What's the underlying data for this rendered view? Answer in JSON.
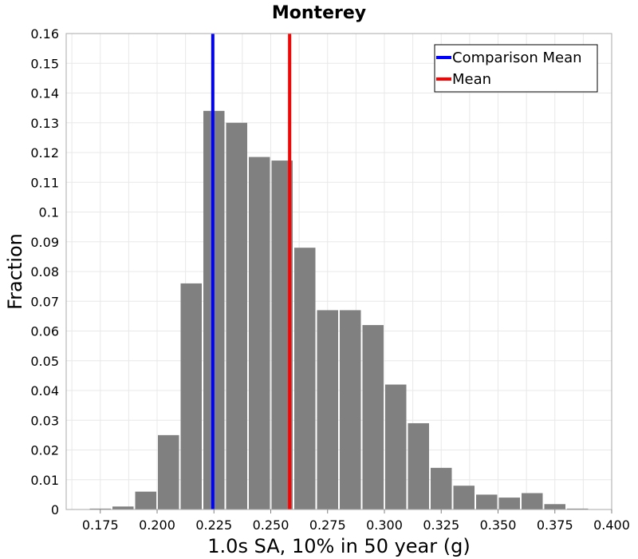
{
  "chart_data": {
    "type": "bar",
    "title": "Monterey",
    "xlabel": "1.0s SA, 10% in 50 year (g)",
    "ylabel": "Fraction",
    "xlim": [
      0.16,
      0.4
    ],
    "ylim": [
      0,
      0.16
    ],
    "bin_width": 0.01,
    "x_ticks": [
      "0.175",
      "0.200",
      "0.225",
      "0.250",
      "0.275",
      "0.300",
      "0.325",
      "0.350",
      "0.375",
      "0.400"
    ],
    "y_ticks": [
      "0",
      "0.01",
      "0.02",
      "0.03",
      "0.04",
      "0.05",
      "0.06",
      "0.07",
      "0.08",
      "0.09",
      "0.1",
      "0.11",
      "0.12",
      "0.13",
      "0.14",
      "0.15",
      "0.16"
    ],
    "bars": [
      {
        "x": 0.175,
        "value": 0.0003
      },
      {
        "x": 0.185,
        "value": 0.001
      },
      {
        "x": 0.195,
        "value": 0.006
      },
      {
        "x": 0.205,
        "value": 0.025
      },
      {
        "x": 0.215,
        "value": 0.076
      },
      {
        "x": 0.225,
        "value": 0.134
      },
      {
        "x": 0.235,
        "value": 0.13
      },
      {
        "x": 0.245,
        "value": 0.1185
      },
      {
        "x": 0.255,
        "value": 0.1173
      },
      {
        "x": 0.265,
        "value": 0.088
      },
      {
        "x": 0.275,
        "value": 0.067
      },
      {
        "x": 0.285,
        "value": 0.067
      },
      {
        "x": 0.295,
        "value": 0.062
      },
      {
        "x": 0.305,
        "value": 0.042
      },
      {
        "x": 0.315,
        "value": 0.029
      },
      {
        "x": 0.325,
        "value": 0.014
      },
      {
        "x": 0.335,
        "value": 0.008
      },
      {
        "x": 0.345,
        "value": 0.005
      },
      {
        "x": 0.355,
        "value": 0.004
      },
      {
        "x": 0.365,
        "value": 0.0055
      },
      {
        "x": 0.375,
        "value": 0.0018
      },
      {
        "x": 0.385,
        "value": 0.0003
      }
    ],
    "bar_color": "#808080",
    "lines": [
      {
        "name": "Comparison Mean",
        "x": 0.2245,
        "color": "#0000ff"
      },
      {
        "name": "Mean",
        "x": 0.2583,
        "color": "#ff0000"
      }
    ],
    "legend": {
      "position": "top-right",
      "entries": [
        {
          "label": "Comparison Mean",
          "color": "#0000ff"
        },
        {
          "label": "Mean",
          "color": "#ff0000"
        }
      ]
    },
    "grid": true,
    "grid_color": "#e8e8e8"
  }
}
